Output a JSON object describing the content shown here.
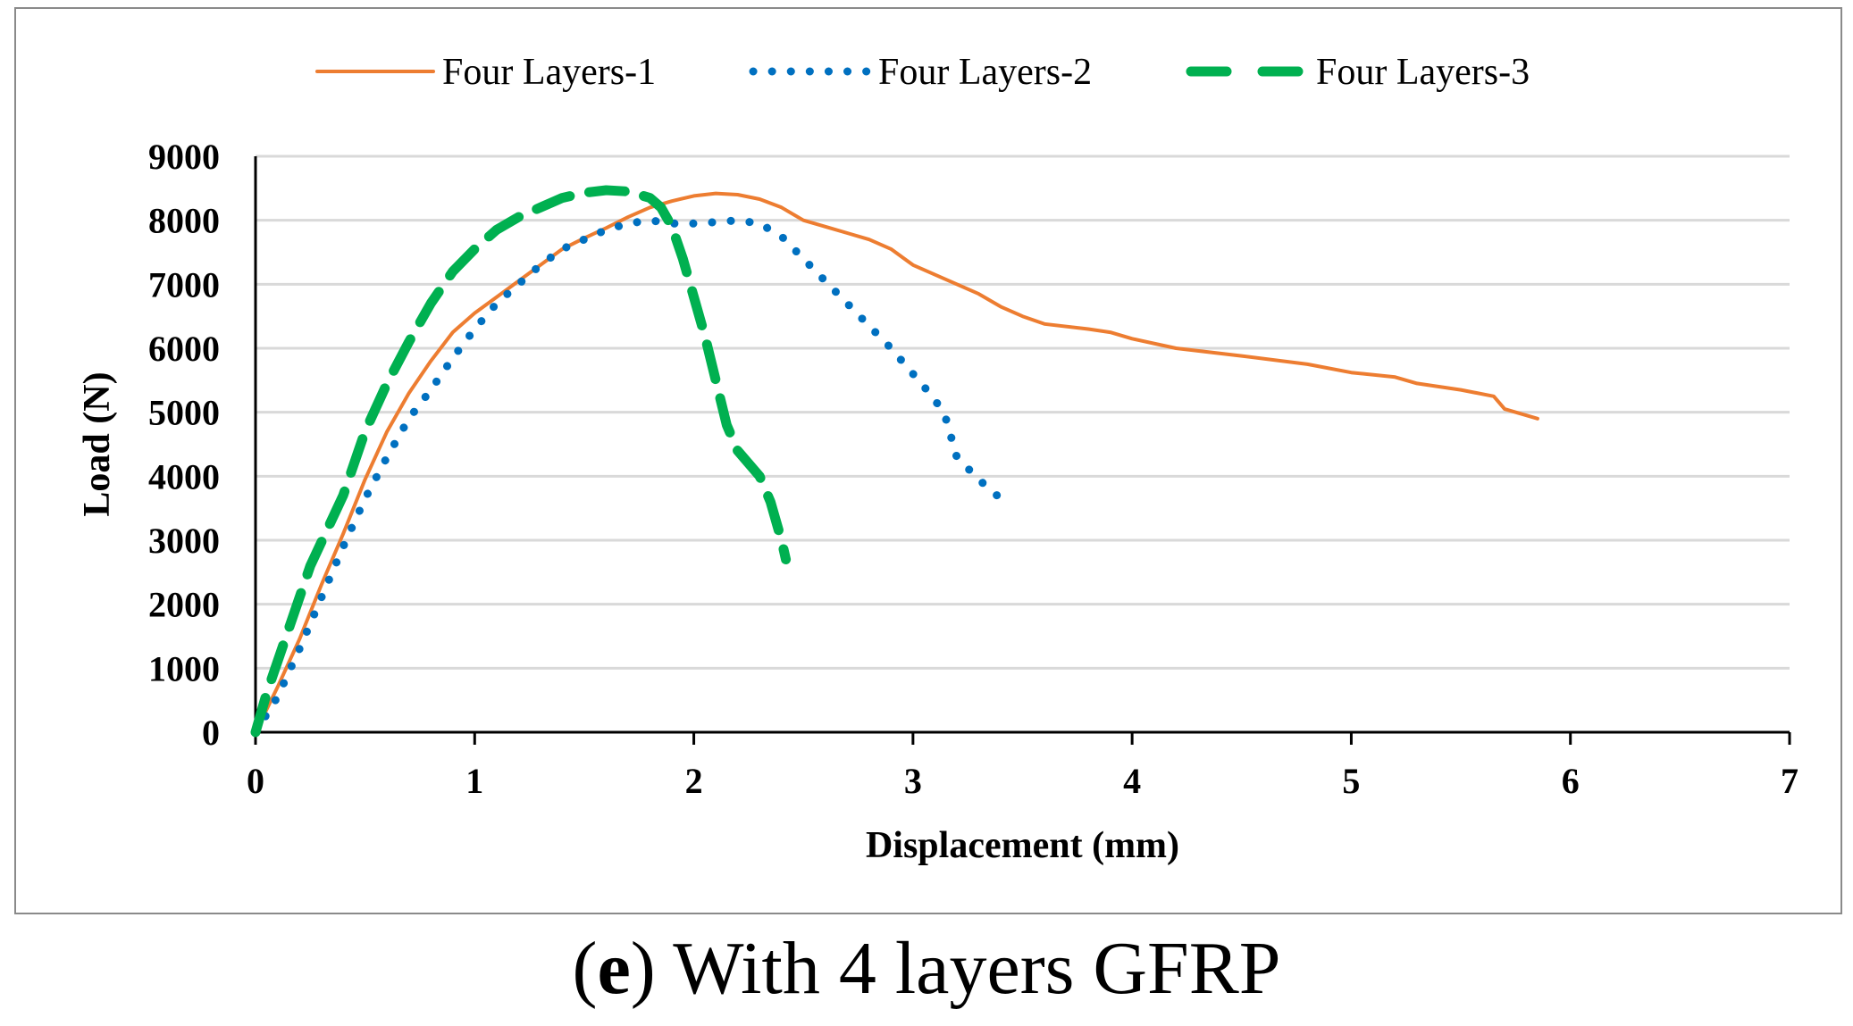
{
  "caption": {
    "open": "(",
    "letter": "e",
    "rest": ") With 4 layers GFRP"
  },
  "chart_data": {
    "type": "line",
    "xlabel": "Displacement (mm)",
    "ylabel": "Load (N)",
    "xlim": [
      0,
      7
    ],
    "ylim": [
      0,
      9000
    ],
    "x_ticks": [
      "0",
      "1",
      "2",
      "3",
      "4",
      "5",
      "6",
      "7"
    ],
    "y_ticks": [
      "0",
      "1000",
      "2000",
      "3000",
      "4000",
      "5000",
      "6000",
      "7000",
      "8000",
      "9000"
    ],
    "grid": "horizontal",
    "legend_position": "top",
    "series": [
      {
        "name": "Four Layers-1",
        "color": "#ED7D31",
        "style": "solid",
        "points": [
          [
            0,
            0
          ],
          [
            0.1,
            700
          ],
          [
            0.2,
            1450
          ],
          [
            0.3,
            2300
          ],
          [
            0.4,
            3100
          ],
          [
            0.5,
            3950
          ],
          [
            0.6,
            4700
          ],
          [
            0.7,
            5300
          ],
          [
            0.8,
            5800
          ],
          [
            0.9,
            6250
          ],
          [
            1.0,
            6550
          ],
          [
            1.1,
            6800
          ],
          [
            1.2,
            7050
          ],
          [
            1.3,
            7300
          ],
          [
            1.4,
            7550
          ],
          [
            1.5,
            7720
          ],
          [
            1.6,
            7880
          ],
          [
            1.7,
            8050
          ],
          [
            1.8,
            8200
          ],
          [
            1.9,
            8300
          ],
          [
            2.0,
            8380
          ],
          [
            2.1,
            8420
          ],
          [
            2.2,
            8400
          ],
          [
            2.3,
            8330
          ],
          [
            2.4,
            8200
          ],
          [
            2.5,
            8000
          ],
          [
            2.6,
            7900
          ],
          [
            2.7,
            7800
          ],
          [
            2.8,
            7700
          ],
          [
            2.9,
            7550
          ],
          [
            3.0,
            7300
          ],
          [
            3.1,
            7150
          ],
          [
            3.2,
            7000
          ],
          [
            3.3,
            6850
          ],
          [
            3.4,
            6650
          ],
          [
            3.5,
            6500
          ],
          [
            3.6,
            6380
          ],
          [
            3.8,
            6300
          ],
          [
            3.9,
            6250
          ],
          [
            4.0,
            6150
          ],
          [
            4.2,
            6000
          ],
          [
            4.5,
            5880
          ],
          [
            4.8,
            5750
          ],
          [
            5.0,
            5620
          ],
          [
            5.2,
            5550
          ],
          [
            5.3,
            5450
          ],
          [
            5.4,
            5400
          ],
          [
            5.5,
            5350
          ],
          [
            5.65,
            5250
          ],
          [
            5.7,
            5050
          ],
          [
            5.85,
            4900
          ]
        ]
      },
      {
        "name": "Four Layers-2",
        "color": "#0070C0",
        "style": "dotted",
        "points": [
          [
            0,
            0
          ],
          [
            0.1,
            550
          ],
          [
            0.2,
            1300
          ],
          [
            0.3,
            2100
          ],
          [
            0.4,
            2900
          ],
          [
            0.5,
            3650
          ],
          [
            0.6,
            4300
          ],
          [
            0.7,
            4900
          ],
          [
            0.8,
            5350
          ],
          [
            0.9,
            5850
          ],
          [
            1.0,
            6300
          ],
          [
            1.1,
            6700
          ],
          [
            1.2,
            7000
          ],
          [
            1.3,
            7300
          ],
          [
            1.4,
            7550
          ],
          [
            1.5,
            7700
          ],
          [
            1.6,
            7850
          ],
          [
            1.7,
            7950
          ],
          [
            1.8,
            8000
          ],
          [
            1.9,
            7950
          ],
          [
            2.0,
            7950
          ],
          [
            2.1,
            7970
          ],
          [
            2.2,
            8000
          ],
          [
            2.3,
            7950
          ],
          [
            2.4,
            7750
          ],
          [
            2.5,
            7400
          ],
          [
            2.6,
            7050
          ],
          [
            2.7,
            6700
          ],
          [
            2.8,
            6350
          ],
          [
            2.9,
            6000
          ],
          [
            3.0,
            5600
          ],
          [
            3.1,
            5200
          ],
          [
            3.15,
            4900
          ],
          [
            3.2,
            4300
          ],
          [
            3.3,
            3950
          ],
          [
            3.4,
            3650
          ]
        ]
      },
      {
        "name": "Four Layers-3",
        "color": "#00B050",
        "style": "dashed",
        "points": [
          [
            0,
            0
          ],
          [
            0.05,
            600
          ],
          [
            0.15,
            1600
          ],
          [
            0.25,
            2600
          ],
          [
            0.4,
            3700
          ],
          [
            0.5,
            4700
          ],
          [
            0.6,
            5450
          ],
          [
            0.7,
            6100
          ],
          [
            0.8,
            6700
          ],
          [
            0.9,
            7200
          ],
          [
            1.0,
            7550
          ],
          [
            1.1,
            7850
          ],
          [
            1.2,
            8050
          ],
          [
            1.3,
            8200
          ],
          [
            1.4,
            8350
          ],
          [
            1.5,
            8430
          ],
          [
            1.6,
            8470
          ],
          [
            1.7,
            8450
          ],
          [
            1.8,
            8350
          ],
          [
            1.85,
            8200
          ],
          [
            1.9,
            7900
          ],
          [
            1.95,
            7400
          ],
          [
            2.0,
            6800
          ],
          [
            2.05,
            6200
          ],
          [
            2.1,
            5500
          ],
          [
            2.15,
            4800
          ],
          [
            2.2,
            4400
          ],
          [
            2.3,
            4000
          ],
          [
            2.35,
            3600
          ],
          [
            2.4,
            3000
          ],
          [
            2.42,
            2700
          ]
        ]
      }
    ]
  }
}
